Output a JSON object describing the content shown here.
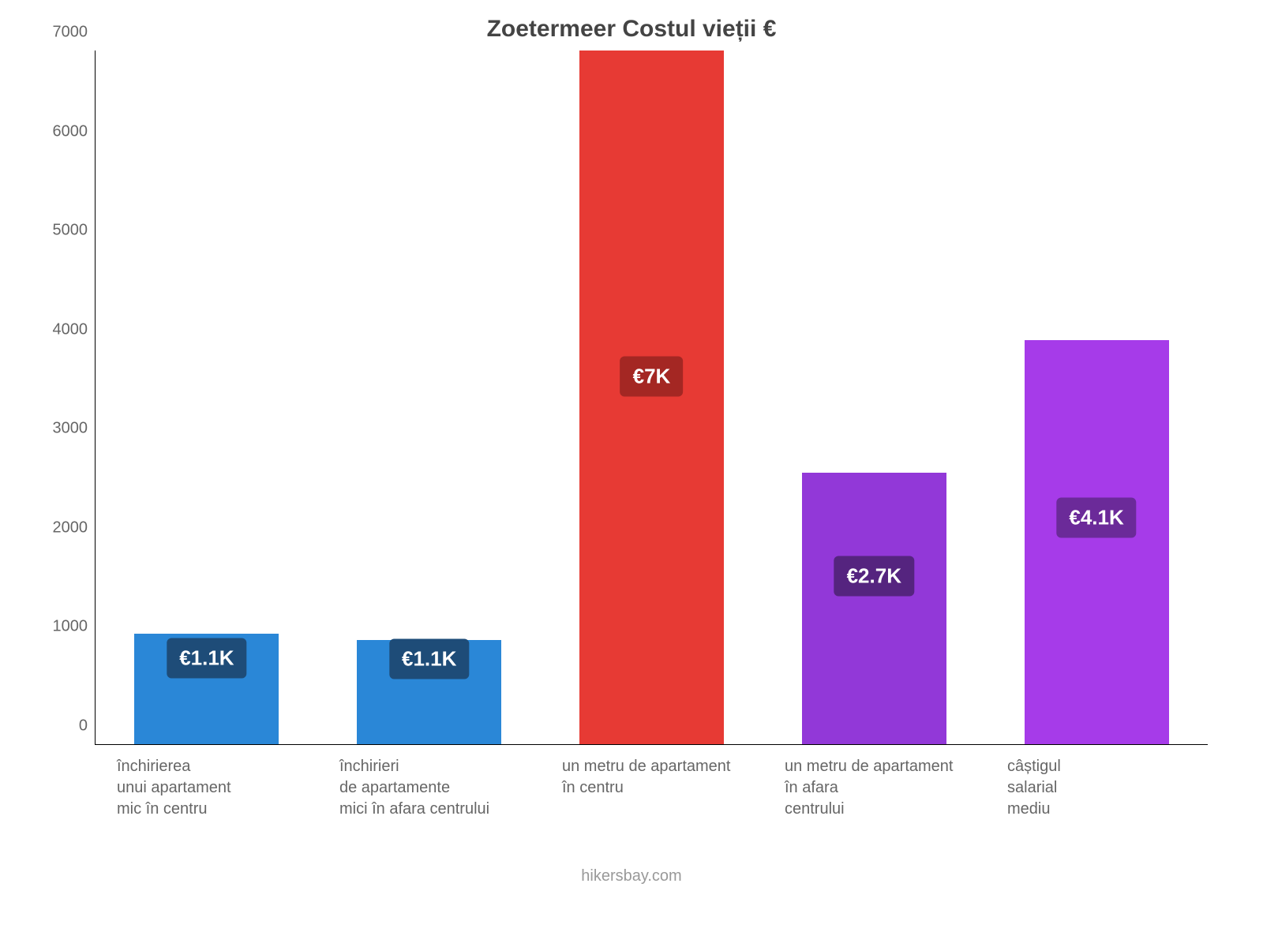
{
  "chart": {
    "type": "bar",
    "title": "Zoetermeer Costul vieții €",
    "title_fontsize": 30,
    "title_color": "#444444",
    "background_color": "#ffffff",
    "axis_color": "#000000",
    "tick_label_color": "#666666",
    "tick_label_fontsize": 20,
    "x_label_fontsize": 20,
    "x_label_color": "#666666",
    "ylim": [
      0,
      7000
    ],
    "ytick_step": 1000,
    "yticks": [
      0,
      1000,
      2000,
      3000,
      4000,
      5000,
      6000,
      7000
    ],
    "bar_width_pct": 65,
    "badge_fontsize": 26,
    "badge_text_color": "#ffffff",
    "footer": "hikersbay.com",
    "footer_color": "#999999",
    "footer_fontsize": 20,
    "bars": [
      {
        "label": "închirierea\nunui apartament\nmic în centru",
        "value": 1115,
        "value_label": "€1.1K",
        "fill": "#2a87d7",
        "badge_bg": "#1e4c78",
        "badge_top_pct": 22
      },
      {
        "label": "închirieri\nde apartamente\nmici în afara centrului",
        "value": 1050,
        "value_label": "€1.1K",
        "fill": "#2a87d7",
        "badge_bg": "#1e4c78",
        "badge_top_pct": 18
      },
      {
        "label": "un metru de apartament\nîn centru",
        "value": 7000,
        "value_label": "€7K",
        "fill": "#e73a34",
        "badge_bg": "#a42723",
        "badge_top_pct": 47
      },
      {
        "label": "un metru de apartament\nîn afara\ncentrului",
        "value": 2740,
        "value_label": "€2.7K",
        "fill": "#9238d8",
        "badge_bg": "#55247f",
        "badge_top_pct": 38
      },
      {
        "label": "câștigul\nsalarial\nmediu",
        "value": 4080,
        "value_label": "€4.1K",
        "fill": "#a63be9",
        "badge_bg": "#6b2a99",
        "badge_top_pct": 44
      }
    ]
  }
}
